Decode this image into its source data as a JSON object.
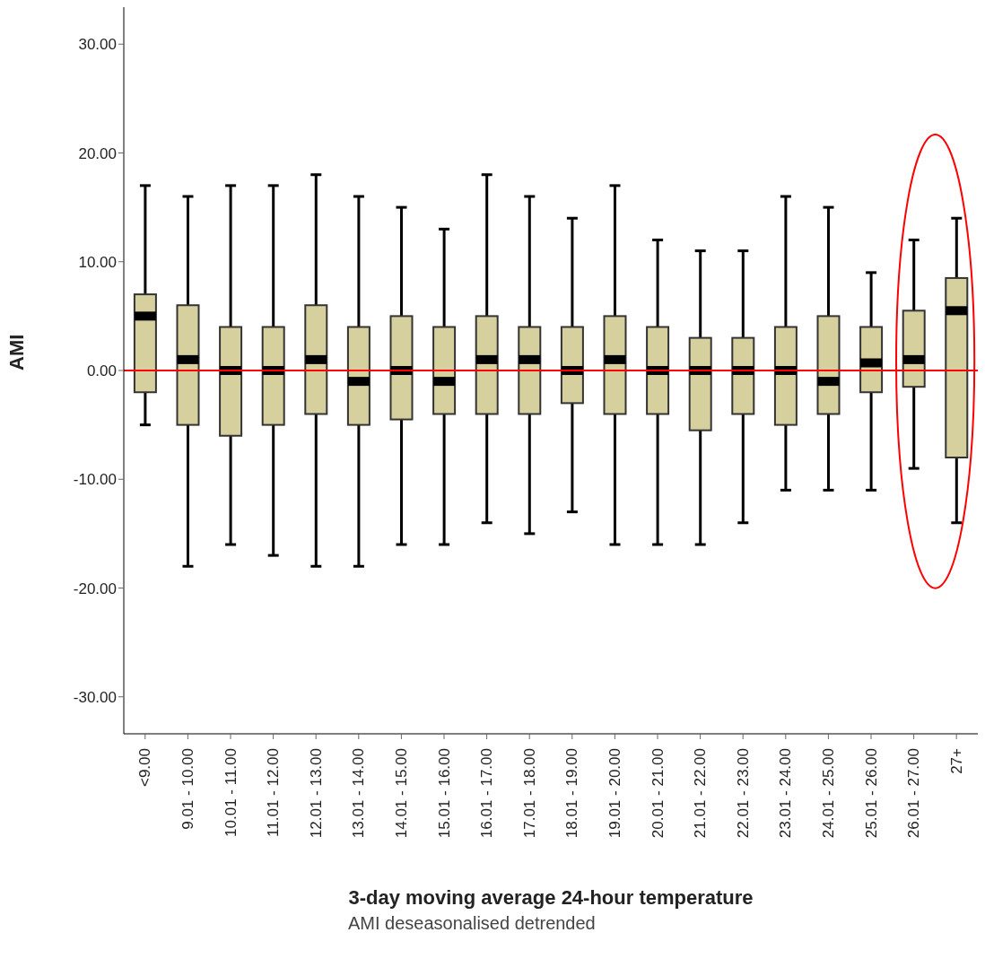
{
  "chart_data": {
    "type": "box",
    "xlabel": "3-day moving average 24-hour temperature",
    "ylabel": "AMI",
    "annotations": [
      "AMI deseasonalised detrended"
    ],
    "categories": [
      "<9.00",
      "9.01 - 10.00",
      "10.01 - 11.00",
      "11.01 - 12.00",
      "12.01 - 13.00",
      "13.01 - 14.00",
      "14.01 - 15.00",
      "15.01 - 16.00",
      "16.01 - 17.00",
      "17.01 - 18.00",
      "18.01 - 19.00",
      "19.01 - 20.00",
      "20.01 - 21.00",
      "21.01 - 22.00",
      "22.01 - 23.00",
      "23.01 - 24.00",
      "24.01 - 25.00",
      "25.01 - 26.00",
      "26.01 - 27.00",
      "27+"
    ],
    "color": "#d6d09e",
    "boxes": [
      {
        "low": -5,
        "q1": -2,
        "median": 5,
        "q3": 7,
        "high": 17
      },
      {
        "low": -18,
        "q1": -5,
        "median": 1,
        "q3": 6,
        "high": 16
      },
      {
        "low": -16,
        "q1": -6,
        "median": 0,
        "q3": 4,
        "high": 17
      },
      {
        "low": -17,
        "q1": -5,
        "median": 0,
        "q3": 4,
        "high": 17
      },
      {
        "low": -18,
        "q1": -4,
        "median": 1,
        "q3": 6,
        "high": 18
      },
      {
        "low": -18,
        "q1": -5,
        "median": -1,
        "q3": 4,
        "high": 16
      },
      {
        "low": -16,
        "q1": -4.5,
        "median": 0,
        "q3": 5,
        "high": 15
      },
      {
        "low": -16,
        "q1": -4,
        "median": -1,
        "q3": 4,
        "high": 13
      },
      {
        "low": -14,
        "q1": -4,
        "median": 1,
        "q3": 5,
        "high": 18
      },
      {
        "low": -15,
        "q1": -4,
        "median": 1,
        "q3": 4,
        "high": 16
      },
      {
        "low": -13,
        "q1": -3,
        "median": 0,
        "q3": 4,
        "high": 14
      },
      {
        "low": -16,
        "q1": -4,
        "median": 1,
        "q3": 5,
        "high": 17
      },
      {
        "low": -16,
        "q1": -4,
        "median": 0,
        "q3": 4,
        "high": 12
      },
      {
        "low": -16,
        "q1": -5.5,
        "median": 0,
        "q3": 3,
        "high": 11
      },
      {
        "low": -14,
        "q1": -4,
        "median": 0,
        "q3": 3,
        "high": 11
      },
      {
        "low": -11,
        "q1": -5,
        "median": 0,
        "q3": 4,
        "high": 16
      },
      {
        "low": -11,
        "q1": -4,
        "median": -1,
        "q3": 5,
        "high": 15
      },
      {
        "low": -11,
        "q1": -2,
        "median": 0.7,
        "q3": 4,
        "high": 9
      },
      {
        "low": -9,
        "q1": -1.5,
        "median": 1,
        "q3": 5.5,
        "high": 12
      },
      {
        "low": -14,
        "q1": -8,
        "median": 5.5,
        "q3": 8.5,
        "high": 14
      }
    ],
    "ylim": [
      -33.4,
      33.4
    ],
    "yticks": [
      {
        "value": -30,
        "label": "-30.00"
      },
      {
        "value": -20,
        "label": "-20.00"
      },
      {
        "value": -10,
        "label": "-10.00"
      },
      {
        "value": 0,
        "label": "0.00"
      },
      {
        "value": 10,
        "label": "10.00"
      },
      {
        "value": 20,
        "label": "20.00"
      },
      {
        "value": 30,
        "label": "30.00"
      }
    ],
    "ref_lines": [
      {
        "axis": "y",
        "value": 0,
        "color": "#ff0000"
      }
    ],
    "grid": false,
    "legend": false
  }
}
